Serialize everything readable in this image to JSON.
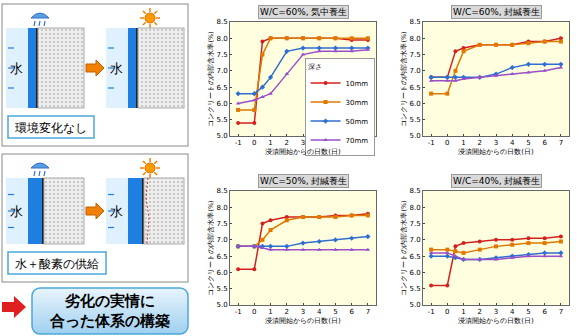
{
  "diagram": {
    "scenes": [
      {
        "left_label": "水",
        "right_label": "水",
        "caption": "環境変化なし"
      },
      {
        "left_label": "水",
        "right_label": "水",
        "caption": "水＋酸素の供給"
      }
    ],
    "conclusion": [
      "劣化の実情に",
      "合った体系の構築"
    ]
  },
  "chart_data": [
    {
      "type": "line",
      "title": "W/C=60%, 気中養生",
      "x_label": "浸漬開始からの日数(日)",
      "y_label": "コンクリートの内部含水率(%)",
      "legend": "right",
      "legend_title": "深さ",
      "x": [
        -1,
        0,
        0.5,
        1,
        2,
        3,
        4,
        5,
        6,
        7
      ],
      "xlim": [
        -1.5,
        7.5
      ],
      "xticks": [
        -1,
        0,
        1,
        2,
        3,
        4,
        5,
        6,
        7
      ],
      "ylim": [
        5,
        8.5
      ],
      "yticks": [
        {
          "value": 5,
          "label": "5.0"
        },
        5.5,
        {
          "value": 6,
          "label": "6.0"
        },
        6.5,
        {
          "value": 7,
          "label": "7.0"
        },
        7.5,
        {
          "value": 8,
          "label": "8.0"
        },
        8.5
      ],
      "grid": false,
      "series": [
        {
          "name": "10mm",
          "color": "#d42020",
          "marker": "circle",
          "values": [
            5.4,
            5.4,
            7.9,
            8.0,
            8.0,
            8.0,
            8.0,
            8.0,
            7.95,
            7.95
          ]
        },
        {
          "name": "30mm",
          "color": "#e07800",
          "marker": "square",
          "values": [
            5.8,
            5.8,
            7.5,
            8.0,
            8.0,
            8.0,
            8.0,
            8.0,
            8.0,
            8.0
          ]
        },
        {
          "name": "50mm",
          "color": "#2f6fd0",
          "marker": "diamond",
          "values": [
            6.3,
            6.3,
            6.5,
            6.8,
            7.6,
            7.7,
            7.7,
            7.7,
            7.7,
            7.7
          ]
        },
        {
          "name": "70mm",
          "color": "#9a4fc8",
          "marker": "triangle-up",
          "values": [
            6.0,
            6.1,
            6.2,
            6.3,
            6.9,
            7.5,
            7.6,
            7.6,
            7.6,
            7.65
          ]
        }
      ]
    },
    {
      "type": "line",
      "title": "W/C=60%, 封緘養生",
      "x_label": "浸漬開始からの日数(日)",
      "y_label": "コンクリートの内部含水率(%)",
      "x": [
        -1,
        0,
        0.5,
        1,
        2,
        3,
        4,
        5,
        6,
        7
      ],
      "xlim": [
        -1.5,
        7.5
      ],
      "xticks": [
        -1,
        0,
        1,
        2,
        3,
        4,
        5,
        6,
        7
      ],
      "ylim": [
        5,
        8.5
      ],
      "yticks": [
        {
          "value": 5,
          "label": "5.0"
        },
        5.5,
        {
          "value": 6,
          "label": "6.0"
        },
        6.5,
        {
          "value": 7,
          "label": "7.0"
        },
        7.5,
        {
          "value": 8,
          "label": "8.0"
        },
        8.5
      ],
      "grid": false,
      "series": [
        {
          "name": "10mm",
          "color": "#d42020",
          "marker": "circle",
          "values": [
            6.8,
            6.8,
            7.6,
            7.7,
            7.8,
            7.8,
            7.8,
            7.9,
            7.9,
            8.0
          ]
        },
        {
          "name": "30mm",
          "color": "#e07800",
          "marker": "square",
          "values": [
            6.3,
            6.3,
            7.0,
            7.6,
            7.8,
            7.8,
            7.8,
            7.85,
            7.9,
            7.9
          ]
        },
        {
          "name": "50mm",
          "color": "#2f6fd0",
          "marker": "diamond",
          "values": [
            6.8,
            6.8,
            6.8,
            6.8,
            6.8,
            6.9,
            7.1,
            7.2,
            7.2,
            7.2
          ]
        },
        {
          "name": "70mm",
          "color": "#9a4fc8",
          "marker": "triangle-up",
          "values": [
            6.7,
            6.7,
            6.7,
            6.75,
            6.8,
            6.85,
            6.9,
            6.95,
            7.0,
            7.1
          ]
        }
      ]
    },
    {
      "type": "line",
      "title": "W/C=50%, 封緘養生",
      "x_label": "浸漬開始からの日数(日)",
      "y_label": "コンクリートの内部含水率(%)",
      "x": [
        -1,
        0,
        0.5,
        1,
        2,
        3,
        4,
        5,
        6,
        7
      ],
      "xlim": [
        -1.5,
        7.5
      ],
      "xticks": [
        -1,
        0,
        1,
        2,
        3,
        4,
        5,
        6,
        7
      ],
      "ylim": [
        5,
        8.5
      ],
      "yticks": [
        {
          "value": 5,
          "label": "5.0"
        },
        5.5,
        {
          "value": 6,
          "label": "6.0"
        },
        6.5,
        {
          "value": 7,
          "label": "7.0"
        },
        7.5,
        {
          "value": 8,
          "label": "8.0"
        },
        8.5
      ],
      "grid": false,
      "series": [
        {
          "name": "10mm",
          "color": "#d42020",
          "marker": "circle",
          "values": [
            6.1,
            6.1,
            7.5,
            7.6,
            7.7,
            7.7,
            7.7,
            7.75,
            7.75,
            7.8
          ]
        },
        {
          "name": "30mm",
          "color": "#e07800",
          "marker": "square",
          "values": [
            6.8,
            6.8,
            7.0,
            7.3,
            7.6,
            7.7,
            7.7,
            7.7,
            7.75,
            7.75
          ]
        },
        {
          "name": "50mm",
          "color": "#2f6fd0",
          "marker": "diamond",
          "values": [
            6.8,
            6.8,
            6.8,
            6.8,
            6.8,
            6.9,
            6.95,
            7.0,
            7.05,
            7.1
          ]
        },
        {
          "name": "70mm",
          "color": "#9a4fc8",
          "marker": "triangle-up",
          "values": [
            6.8,
            6.8,
            6.75,
            6.7,
            6.7,
            6.7,
            6.7,
            6.7,
            6.7,
            6.7
          ]
        }
      ]
    },
    {
      "type": "line",
      "title": "W/C=40%, 封緘養生",
      "x_label": "浸漬開始からの日数(日)",
      "y_label": "コンクリートの内部含水率(%)",
      "x": [
        -1,
        0,
        0.5,
        1,
        2,
        3,
        4,
        5,
        6,
        7
      ],
      "xlim": [
        -1.5,
        7.5
      ],
      "xticks": [
        -1,
        0,
        1,
        2,
        3,
        4,
        5,
        6,
        7
      ],
      "ylim": [
        5,
        8.5
      ],
      "yticks": [
        {
          "value": 5,
          "label": "5.0"
        },
        5.5,
        {
          "value": 6,
          "label": "6.0"
        },
        6.5,
        {
          "value": 7,
          "label": "7.0"
        },
        7.5,
        {
          "value": 8,
          "label": "8.0"
        },
        8.5
      ],
      "grid": false,
      "series": [
        {
          "name": "10mm",
          "color": "#d42020",
          "marker": "circle",
          "values": [
            5.6,
            5.6,
            6.8,
            6.9,
            6.95,
            7.0,
            7.0,
            7.05,
            7.05,
            7.1
          ]
        },
        {
          "name": "30mm",
          "color": "#e07800",
          "marker": "square",
          "values": [
            6.7,
            6.7,
            6.65,
            6.6,
            6.7,
            6.8,
            6.85,
            6.9,
            6.9,
            6.95
          ]
        },
        {
          "name": "50mm",
          "color": "#2f6fd0",
          "marker": "diamond",
          "values": [
            6.5,
            6.5,
            6.45,
            6.4,
            6.4,
            6.45,
            6.5,
            6.55,
            6.6,
            6.6
          ]
        },
        {
          "name": "70mm",
          "color": "#9a4fc8",
          "marker": "triangle-up",
          "values": [
            6.6,
            6.6,
            6.5,
            6.4,
            6.4,
            6.4,
            6.45,
            6.5,
            6.5,
            6.5
          ]
        }
      ]
    }
  ]
}
